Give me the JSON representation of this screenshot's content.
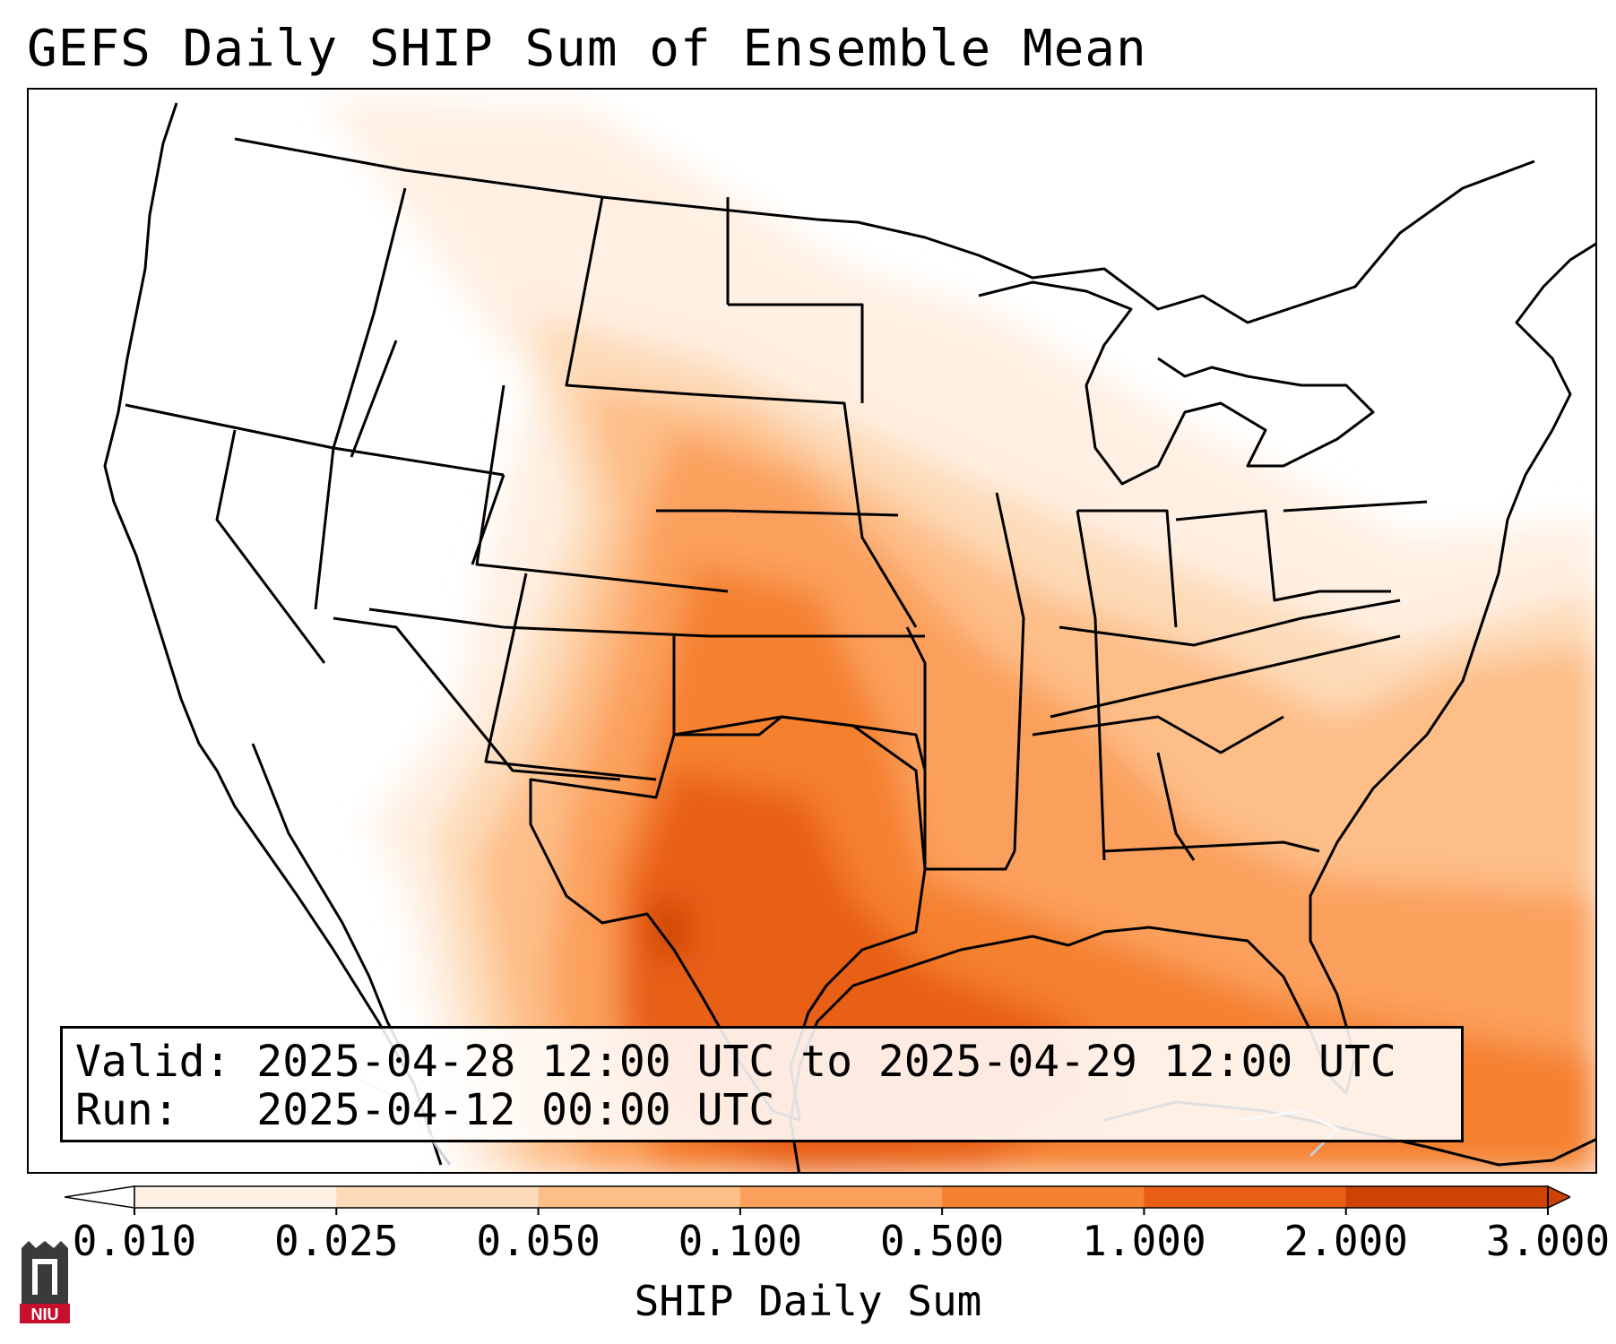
{
  "title": "GEFS Daily SHIP Sum of Ensemble Mean",
  "info": {
    "valid_label": "Valid:",
    "valid_value": "2025-04-28 12:00 UTC to 2025-04-29 12:00 UTC",
    "run_label": "Run:",
    "run_value": "2025-04-12 00:00 UTC"
  },
  "colorbar": {
    "label": "SHIP Daily Sum",
    "ticks": [
      "0.010",
      "0.025",
      "0.050",
      "0.100",
      "0.500",
      "1.000",
      "2.000",
      "3.000"
    ],
    "colors": [
      "#fff0e3",
      "#fddbb8",
      "#fdbe88",
      "#fba05c",
      "#f5802f",
      "#e85f13",
      "#cc4303"
    ],
    "extend": "both"
  },
  "logo": {
    "text": "NIU"
  }
}
